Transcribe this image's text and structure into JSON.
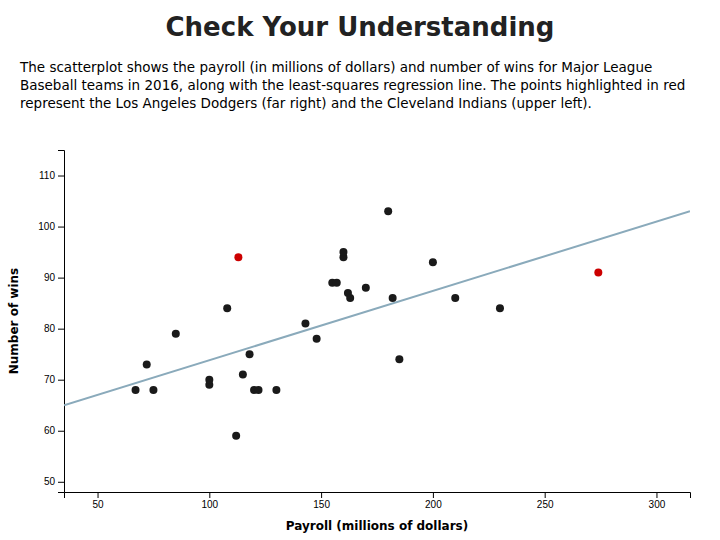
{
  "chart_data": {
    "type": "scatter",
    "title": "Check Your Understanding",
    "subtitle": "The scatterplot shows the payroll (in millions of dollars) and number of wins for Major League Baseball teams in 2016, along with the least-squares regression line. The points highlighted in red represent the Los Angeles Dodgers (far right) and the Cleveland Indians (upper left).",
    "x_label": "Payroll (millions of dollars)",
    "y_label": "Number of wins",
    "xlim": [
      35,
      315
    ],
    "ylim": [
      48,
      115
    ],
    "xticks": [
      50,
      100,
      150,
      200,
      250,
      300
    ],
    "yticks": [
      50,
      60,
      70,
      80,
      90,
      100,
      110
    ],
    "grid": false,
    "series": [
      {
        "type": "line",
        "color": "#8aaabb",
        "x": [
          35,
          315
        ],
        "values": [
          65.0,
          103.0
        ]
      },
      {
        "type": "scatter",
        "color": "#1a1a1a",
        "x": [
          67,
          72,
          75,
          85,
          100,
          100,
          108,
          112,
          115,
          118,
          120,
          122,
          130,
          143,
          148,
          155,
          157,
          160,
          160,
          162,
          163,
          170,
          180,
          182,
          185,
          200,
          210,
          230
        ],
        "values": [
          68,
          73,
          68,
          79,
          69,
          70,
          84,
          59,
          71,
          75,
          68,
          68,
          68,
          81,
          78,
          89,
          89,
          94,
          95,
          87,
          86,
          88,
          103,
          86,
          74,
          93,
          86,
          84
        ]
      },
      {
        "type": "scatter",
        "color": "#cc0000",
        "x": [
          113,
          274
        ],
        "values": [
          94,
          91
        ]
      }
    ]
  }
}
